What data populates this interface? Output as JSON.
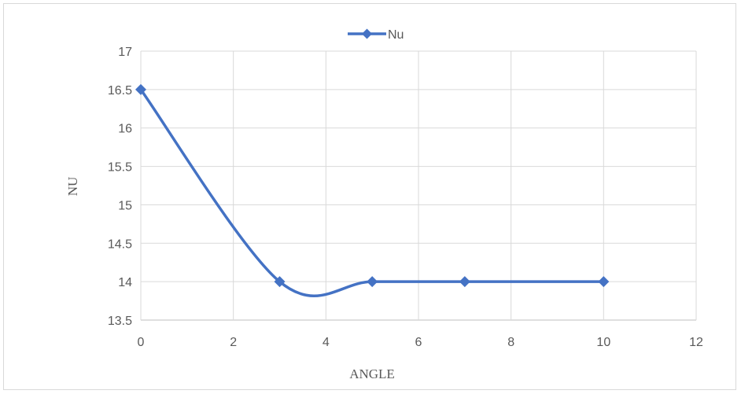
{
  "chart_data": {
    "type": "line",
    "title": "",
    "xlabel": "ANGLE",
    "ylabel": "NU",
    "xlim": [
      0,
      12
    ],
    "ylim": [
      13.5,
      17
    ],
    "xticks": [
      0,
      2,
      4,
      6,
      8,
      10,
      12
    ],
    "yticks": [
      13.5,
      14,
      14.5,
      15,
      15.5,
      16,
      16.5,
      17
    ],
    "xtick_labels": [
      "0",
      "2",
      "4",
      "6",
      "8",
      "10",
      "12"
    ],
    "ytick_labels": [
      "13.5",
      "14",
      "14.5",
      "15",
      "15.5",
      "16",
      "16.5",
      "17"
    ],
    "grid": true,
    "smooth": true,
    "legend_position": "top",
    "series": [
      {
        "name": "Nu",
        "color": "#4472c4",
        "marker": "diamond",
        "x": [
          0,
          3,
          5,
          7,
          10
        ],
        "y": [
          16.5,
          14,
          14,
          14,
          14
        ]
      }
    ]
  }
}
